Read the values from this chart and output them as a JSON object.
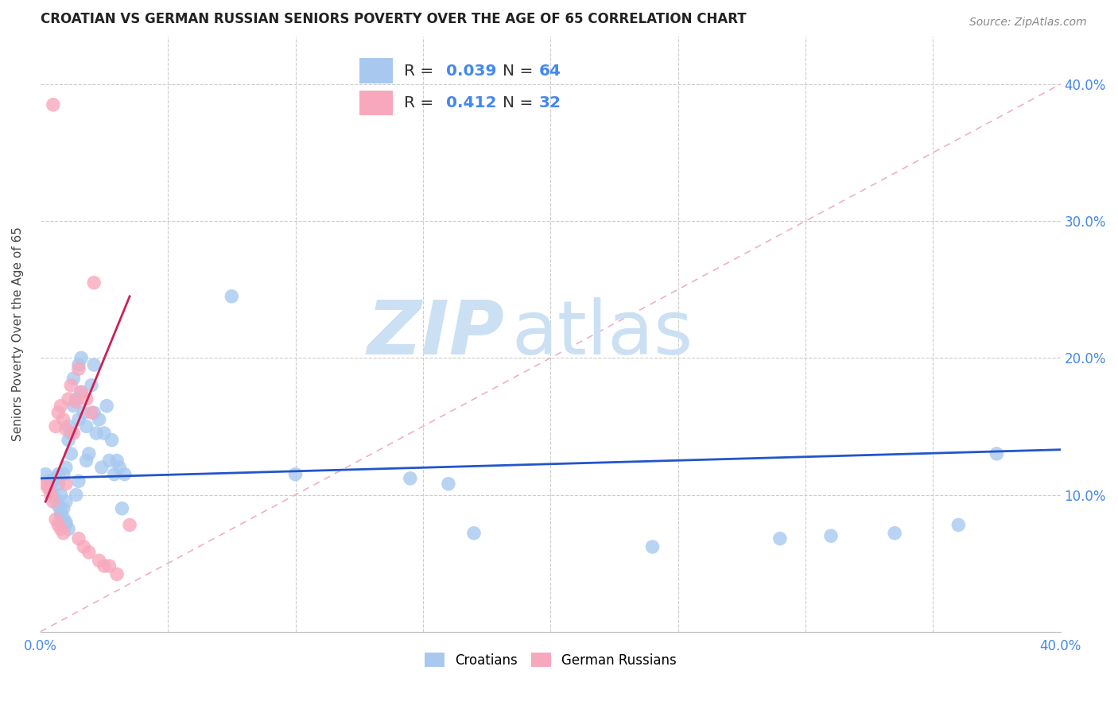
{
  "title": "CROATIAN VS GERMAN RUSSIAN SENIORS POVERTY OVER THE AGE OF 65 CORRELATION CHART",
  "source": "Source: ZipAtlas.com",
  "ylabel": "Seniors Poverty Over the Age of 65",
  "xlim": [
    0.0,
    0.4
  ],
  "ylim": [
    0.0,
    0.435
  ],
  "R_croatian": "0.039",
  "N_croatian": "64",
  "R_german": "0.412",
  "N_german": "32",
  "color_croatian": "#a8c8f0",
  "color_german": "#f8a8bc",
  "color_line_croatian": "#2255cc",
  "color_line_german": "#cc2255",
  "color_diagonal": "#f0b0c0",
  "color_grid": "#cccccc",
  "color_axis_text": "#4488ee",
  "watermark_color": "#cce0f4",
  "croatian_x": [
    0.002,
    0.003,
    0.004,
    0.005,
    0.005,
    0.006,
    0.006,
    0.007,
    0.007,
    0.007,
    0.008,
    0.008,
    0.008,
    0.009,
    0.009,
    0.009,
    0.01,
    0.01,
    0.01,
    0.01,
    0.011,
    0.011,
    0.011,
    0.012,
    0.012,
    0.013,
    0.013,
    0.014,
    0.014,
    0.015,
    0.015,
    0.015,
    0.016,
    0.016,
    0.017,
    0.018,
    0.018,
    0.019,
    0.02,
    0.021,
    0.021,
    0.022,
    0.023,
    0.024,
    0.025,
    0.026,
    0.027,
    0.028,
    0.029,
    0.03,
    0.031,
    0.032,
    0.033,
    0.075,
    0.1,
    0.145,
    0.16,
    0.17,
    0.24,
    0.29,
    0.31,
    0.335,
    0.36,
    0.375
  ],
  "croatian_y": [
    0.115,
    0.11,
    0.105,
    0.11,
    0.1,
    0.112,
    0.095,
    0.108,
    0.092,
    0.115,
    0.088,
    0.1,
    0.085,
    0.083,
    0.09,
    0.115,
    0.08,
    0.095,
    0.078,
    0.12,
    0.15,
    0.14,
    0.075,
    0.145,
    0.13,
    0.165,
    0.185,
    0.17,
    0.1,
    0.195,
    0.155,
    0.11,
    0.175,
    0.2,
    0.16,
    0.15,
    0.125,
    0.13,
    0.18,
    0.16,
    0.195,
    0.145,
    0.155,
    0.12,
    0.145,
    0.165,
    0.125,
    0.14,
    0.115,
    0.125,
    0.12,
    0.09,
    0.115,
    0.245,
    0.115,
    0.112,
    0.108,
    0.072,
    0.062,
    0.068,
    0.07,
    0.072,
    0.078,
    0.13
  ],
  "german_x": [
    0.002,
    0.003,
    0.004,
    0.005,
    0.005,
    0.006,
    0.006,
    0.007,
    0.007,
    0.008,
    0.008,
    0.009,
    0.009,
    0.01,
    0.01,
    0.011,
    0.012,
    0.013,
    0.014,
    0.015,
    0.015,
    0.016,
    0.017,
    0.018,
    0.019,
    0.02,
    0.021,
    0.023,
    0.025,
    0.027,
    0.03,
    0.035
  ],
  "german_y": [
    0.108,
    0.105,
    0.1,
    0.095,
    0.385,
    0.082,
    0.15,
    0.078,
    0.16,
    0.165,
    0.075,
    0.155,
    0.072,
    0.148,
    0.108,
    0.17,
    0.18,
    0.145,
    0.168,
    0.192,
    0.068,
    0.175,
    0.062,
    0.17,
    0.058,
    0.16,
    0.255,
    0.052,
    0.048,
    0.048,
    0.042,
    0.078
  ],
  "blue_line_x0": 0.0,
  "blue_line_y0": 0.112,
  "blue_line_x1": 0.4,
  "blue_line_y1": 0.133,
  "pink_line_x0": 0.002,
  "pink_line_y0": 0.095,
  "pink_line_x1": 0.035,
  "pink_line_y1": 0.245
}
